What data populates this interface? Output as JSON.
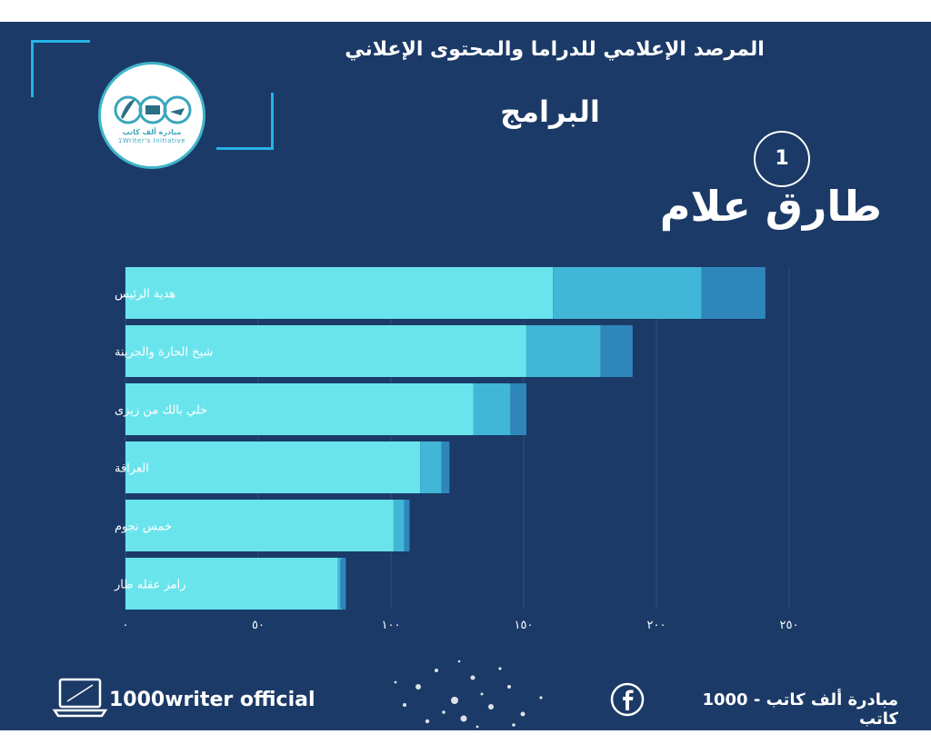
{
  "header": {
    "title": "المرصد الإعلامي للدراما والمحتوى الإعلاني",
    "subtitle": "البرامج",
    "rank": "1",
    "person": "طارق علام"
  },
  "logo": {
    "name_ar": "مبادرة ألف كاتب",
    "name_en": "1Writer's Initiative"
  },
  "footer": {
    "brand": "1000writer official",
    "initiative": "مبادرة ألف كاتب - 1000 كاتب",
    "brand_icon": "laptop-icon",
    "social_icon": "facebook-icon"
  },
  "colors": {
    "background": "#1b3a67",
    "accent": "#26b3e6",
    "segment_1": "#6ae4ec",
    "segment_2": "#41b6d6",
    "segment_3": "#2e86bb",
    "grid": "#2f4f7d"
  },
  "chart_data": {
    "type": "bar",
    "orientation": "horizontal",
    "stacked": true,
    "categories": [
      "هدية الرئيس",
      "شيخ الحارة والجرينة",
      "خلي بالك من زيزى",
      "العرافة",
      "خمس نجوم",
      "رامز عقله طار"
    ],
    "series": [
      {
        "values": [
          161,
          151,
          131,
          111,
          101,
          80
        ]
      },
      {
        "values": [
          56,
          28,
          14,
          8,
          4,
          2
        ]
      },
      {
        "values": [
          24,
          12,
          6,
          3,
          2,
          1
        ]
      }
    ],
    "xlim": [
      0,
      250
    ],
    "x_ticks": [
      0,
      50,
      100,
      150,
      200,
      250
    ],
    "x_tick_labels": [
      "٠",
      "٥٠",
      "١٠٠",
      "١٥٠",
      "٢٠٠",
      "٢٥٠"
    ],
    "grid": true,
    "legend": "none"
  }
}
